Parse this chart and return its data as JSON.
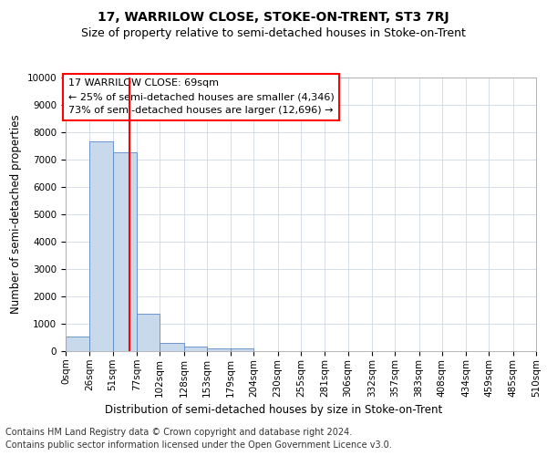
{
  "title": "17, WARRILOW CLOSE, STOKE-ON-TRENT, ST3 7RJ",
  "subtitle": "Size of property relative to semi-detached houses in Stoke-on-Trent",
  "xlabel": "Distribution of semi-detached houses by size in Stoke-on-Trent",
  "ylabel": "Number of semi-detached properties",
  "footer_line1": "Contains HM Land Registry data © Crown copyright and database right 2024.",
  "footer_line2": "Contains public sector information licensed under the Open Government Licence v3.0.",
  "annotation_title": "17 WARRILOW CLOSE: 69sqm",
  "annotation_line1": "← 25% of semi-detached houses are smaller (4,346)",
  "annotation_line2": "73% of semi-detached houses are larger (12,696) →",
  "property_size": 69,
  "bin_edges": [
    0,
    26,
    51,
    77,
    102,
    128,
    153,
    179,
    204,
    230,
    255,
    281,
    306,
    332,
    357,
    383,
    408,
    434,
    459,
    485,
    510
  ],
  "bar_heights": [
    530,
    7650,
    7280,
    1360,
    310,
    155,
    100,
    90,
    0,
    0,
    0,
    0,
    0,
    0,
    0,
    0,
    0,
    0,
    0,
    0
  ],
  "bar_color": "#c9d9ec",
  "bar_edge_color": "#5b8ac5",
  "red_line_x": 69,
  "ylim": [
    0,
    10000
  ],
  "yticks": [
    0,
    1000,
    2000,
    3000,
    4000,
    5000,
    6000,
    7000,
    8000,
    9000,
    10000
  ],
  "background_color": "#ffffff",
  "grid_color": "#d0d8e8",
  "title_fontsize": 10,
  "subtitle_fontsize": 9,
  "axis_label_fontsize": 8.5,
  "tick_fontsize": 7.5,
  "annotation_fontsize": 8,
  "footer_fontsize": 7
}
